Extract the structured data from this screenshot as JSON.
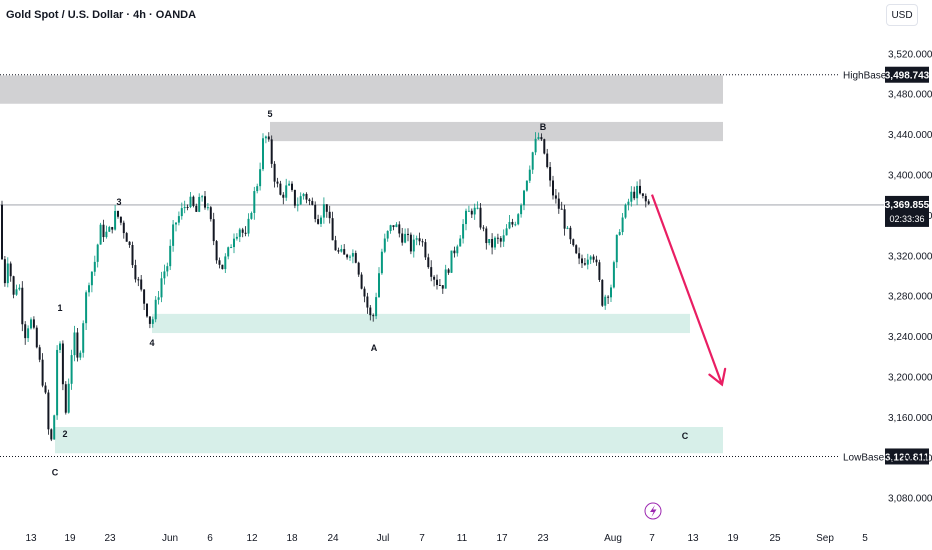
{
  "header": {
    "title": "Gold Spot / U.S. Dollar · 4h · OANDA",
    "currency": "USD"
  },
  "chart_data": {
    "type": "candlestick",
    "ylim": [
      3050,
      3545
    ],
    "y_ticks": [
      3520,
      3480,
      3440,
      3400,
      3360,
      3320,
      3280,
      3240,
      3200,
      3160,
      3120,
      3080
    ],
    "y_tick_labels": [
      "3,520.000",
      "3,480.000",
      "3,440.000",
      "3,400.000",
      "3,360.000",
      "3,320.000",
      "3,280.000",
      "3,240.000",
      "3,200.000",
      "3,160.000",
      "3,120.000",
      "3,080.000"
    ],
    "x_tick_labels": [
      "13",
      "19",
      "23",
      "Jun",
      "6",
      "12",
      "18",
      "24",
      "Jul",
      "7",
      "11",
      "17",
      "23",
      "Aug",
      "7",
      "13",
      "19",
      "25",
      "Sep",
      "5"
    ],
    "price_path": [
      [
        0,
        3370
      ],
      [
        2,
        3340
      ],
      [
        6,
        3290
      ],
      [
        10,
        3320
      ],
      [
        16,
        3275
      ],
      [
        20,
        3300
      ],
      [
        26,
        3240
      ],
      [
        32,
        3258
      ],
      [
        38,
        3232
      ],
      [
        44,
        3200
      ],
      [
        48,
        3175
      ],
      [
        52,
        3125
      ],
      [
        56,
        3160
      ],
      [
        60,
        3250
      ],
      [
        64,
        3200
      ],
      [
        68,
        3162
      ],
      [
        72,
        3215
      ],
      [
        76,
        3240
      ],
      [
        80,
        3210
      ],
      [
        86,
        3265
      ],
      [
        90,
        3295
      ],
      [
        96,
        3310
      ],
      [
        102,
        3345
      ],
      [
        110,
        3340
      ],
      [
        118,
        3362
      ],
      [
        124,
        3350
      ],
      [
        130,
        3335
      ],
      [
        138,
        3300
      ],
      [
        144,
        3280
      ],
      [
        150,
        3262
      ],
      [
        153,
        3250
      ],
      [
        158,
        3272
      ],
      [
        164,
        3300
      ],
      [
        170,
        3312
      ],
      [
        176,
        3350
      ],
      [
        182,
        3360
      ],
      [
        190,
        3375
      ],
      [
        198,
        3362
      ],
      [
        204,
        3380
      ],
      [
        212,
        3355
      ],
      [
        218,
        3322
      ],
      [
        224,
        3308
      ],
      [
        230,
        3322
      ],
      [
        236,
        3342
      ],
      [
        242,
        3348
      ],
      [
        248,
        3335
      ],
      [
        254,
        3372
      ],
      [
        260,
        3395
      ],
      [
        266,
        3440
      ],
      [
        270,
        3432
      ],
      [
        276,
        3400
      ],
      [
        282,
        3378
      ],
      [
        290,
        3388
      ],
      [
        298,
        3370
      ],
      [
        306,
        3382
      ],
      [
        314,
        3368
      ],
      [
        320,
        3358
      ],
      [
        328,
        3372
      ],
      [
        334,
        3335
      ],
      [
        340,
        3322
      ],
      [
        346,
        3318
      ],
      [
        352,
        3325
      ],
      [
        358,
        3318
      ],
      [
        364,
        3290
      ],
      [
        370,
        3266
      ],
      [
        374,
        3252
      ],
      [
        378,
        3282
      ],
      [
        384,
        3325
      ],
      [
        390,
        3342
      ],
      [
        396,
        3352
      ],
      [
        402,
        3340
      ],
      [
        408,
        3338
      ],
      [
        414,
        3325
      ],
      [
        420,
        3342
      ],
      [
        426,
        3328
      ],
      [
        432,
        3308
      ],
      [
        438,
        3295
      ],
      [
        444,
        3290
      ],
      [
        450,
        3308
      ],
      [
        456,
        3325
      ],
      [
        462,
        3342
      ],
      [
        468,
        3358
      ],
      [
        474,
        3366
      ],
      [
        480,
        3360
      ],
      [
        486,
        3340
      ],
      [
        492,
        3328
      ],
      [
        498,
        3335
      ],
      [
        504,
        3332
      ],
      [
        510,
        3348
      ],
      [
        516,
        3352
      ],
      [
        522,
        3370
      ],
      [
        528,
        3395
      ],
      [
        534,
        3420
      ],
      [
        540,
        3438
      ],
      [
        546,
        3422
      ],
      [
        552,
        3390
      ],
      [
        558,
        3372
      ],
      [
        564,
        3362
      ],
      [
        570,
        3338
      ],
      [
        576,
        3322
      ],
      [
        582,
        3310
      ],
      [
        588,
        3318
      ],
      [
        594,
        3328
      ],
      [
        600,
        3300
      ],
      [
        604,
        3275
      ],
      [
        608,
        3282
      ],
      [
        614,
        3292
      ],
      [
        620,
        3345
      ],
      [
        626,
        3360
      ],
      [
        632,
        3378
      ],
      [
        638,
        3384
      ],
      [
        644,
        3376
      ],
      [
        650,
        3370
      ]
    ],
    "forecast_arrow": {
      "from": [
        652,
        3380
      ],
      "to": [
        722,
        3192
      ]
    },
    "zones": [
      {
        "name": "upper-resistance-zone",
        "x": [
          0,
          723
        ],
        "y": [
          3470,
          3498
        ]
      },
      {
        "name": "wave-5-resistance-zone",
        "x": [
          270,
          723
        ],
        "y": [
          3433,
          3452
        ]
      },
      {
        "name": "mid-support-zone",
        "x": [
          152,
          690
        ],
        "y": [
          3243,
          3262
        ]
      },
      {
        "name": "low-support-zone",
        "x": [
          55,
          723
        ],
        "y": [
          3124,
          3150
        ]
      }
    ],
    "wave_labels": [
      {
        "label": "1",
        "x": 60,
        "y": 3265
      },
      {
        "label": "2",
        "x": 65,
        "y": 3140
      },
      {
        "label": "3",
        "x": 119,
        "y": 3370
      },
      {
        "label": "4",
        "x": 152,
        "y": 3230
      },
      {
        "label": "5",
        "x": 270,
        "y": 3457
      },
      {
        "label": "A",
        "x": 374,
        "y": 3225
      },
      {
        "label": "B",
        "x": 543,
        "y": 3444
      },
      {
        "label": "C",
        "x": 55,
        "y": 3102
      },
      {
        "label": "C",
        "x": 685,
        "y": 3138
      }
    ],
    "levels": [
      {
        "name": "HighBase",
        "value": 3498.743,
        "label": "3,498.743"
      },
      {
        "name": "LowBase",
        "value": 3120.811,
        "label": "3,120.811"
      }
    ],
    "current_price": {
      "value": 3369.855,
      "label": "3,369.855",
      "countdown": "02:33:36"
    }
  },
  "colors": {
    "up": "#089981",
    "down": "#131722",
    "zone_gray": "#d1d1d3",
    "zone_green": "#d7efe9",
    "arrow": "#e91e63",
    "lightning": "#9c27b0"
  }
}
